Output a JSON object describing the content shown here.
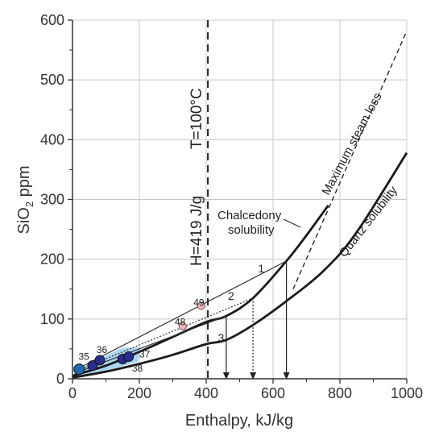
{
  "chart_data": {
    "type": "line",
    "xlabel": "Enthalpy, kJ/kg",
    "ylabel_main": "SiO",
    "ylabel_sub": "2",
    "ylabel_tail": " ppm",
    "xlim": [
      0,
      1000
    ],
    "ylim": [
      0,
      600
    ],
    "xticks": [
      0,
      200,
      400,
      600,
      800,
      1000
    ],
    "yticks": [
      0,
      100,
      200,
      300,
      400,
      500,
      600
    ],
    "grid": true,
    "series": [
      {
        "name": "Chalcedony solubility",
        "style": "solid",
        "x": [
          0,
          100,
          200,
          300,
          400,
          460,
          540,
          640,
          700,
          765
        ],
        "y": [
          5,
          22,
          45,
          70,
          95,
          105,
          135,
          197,
          240,
          290
        ]
      },
      {
        "name": "Quartz solubility",
        "style": "solid",
        "x": [
          0,
          100,
          200,
          300,
          400,
          460,
          540,
          640,
          750,
          850,
          1000
        ],
        "y": [
          2,
          12,
          25,
          40,
          58,
          65,
          90,
          130,
          180,
          245,
          378
        ]
      },
      {
        "name": "Maximum steam loss",
        "style": "dashed",
        "x": [
          660,
          1000
        ],
        "y": [
          150,
          582
        ]
      }
    ],
    "mixing_lines": [
      {
        "label": "1",
        "x": [
          20,
          640
        ],
        "y": [
          18,
          197
        ]
      },
      {
        "label": "2",
        "x": [
          20,
          540
        ],
        "y": [
          15,
          135
        ]
      },
      {
        "label": "3",
        "x": [
          20,
          460
        ],
        "y": [
          12,
          105
        ]
      }
    ],
    "projections": [
      {
        "x": 460,
        "y_top": 105,
        "style": "solid"
      },
      {
        "x": 540,
        "y_top": 135,
        "style": "dotted"
      },
      {
        "x": 640,
        "y_top": 197,
        "style": "solid"
      }
    ],
    "line_number_labels": [
      {
        "text": "1",
        "x": 555,
        "y": 178
      },
      {
        "text": "2",
        "x": 465,
        "y": 132
      },
      {
        "text": "3",
        "x": 435,
        "y": 62
      }
    ],
    "vertical_marker": {
      "x": 405,
      "label_energy": "H=419 J/g",
      "label_temp": "T=100°C"
    },
    "samples": [
      {
        "id": "35",
        "x": 20,
        "y": 16,
        "color": "#1f6bb0",
        "label_dx": 0,
        "label_dy": -18
      },
      {
        "id": "36",
        "x": 60,
        "y": 22,
        "color": "#2a2d8a",
        "label_dx": 10,
        "label_dy": -18
      },
      {
        "id": "36b",
        "x": 82,
        "y": 31,
        "color": "#2a2d8a",
        "label_dx": 0,
        "label_dy": 0
      },
      {
        "id": "37",
        "x": 150,
        "y": 33,
        "color": "#2a2d8a",
        "label_dx": 0,
        "label_dy": 0
      },
      {
        "id": "37b",
        "x": 168,
        "y": 37,
        "color": "#2a2d8a",
        "label_dx": 0,
        "label_dy": 0
      },
      {
        "id": "48",
        "x": 330,
        "y": 88,
        "color": "#f2b8c0",
        "label_dx": 0,
        "label_dy": 0
      },
      {
        "id": "49",
        "x": 385,
        "y": 122,
        "color": "#f2b8c0",
        "label_dx": 0,
        "label_dy": 0
      }
    ],
    "sample_labels": [
      {
        "text": "35",
        "x": 18,
        "y": 32
      },
      {
        "text": "36",
        "x": 72,
        "y": 43
      },
      {
        "text": "37",
        "x": 200,
        "y": 36
      },
      {
        "text": "38",
        "x": 178,
        "y": 12
      },
      {
        "text": "48",
        "x": 306,
        "y": 90
      },
      {
        "text": "49",
        "x": 362,
        "y": 122
      }
    ],
    "curve_labels": {
      "chalcedony_line1": "Chalcedony",
      "chalcedony_line2": "solubility",
      "quartz": "Quartz solubility",
      "steam": "Maximum steam loss"
    }
  }
}
